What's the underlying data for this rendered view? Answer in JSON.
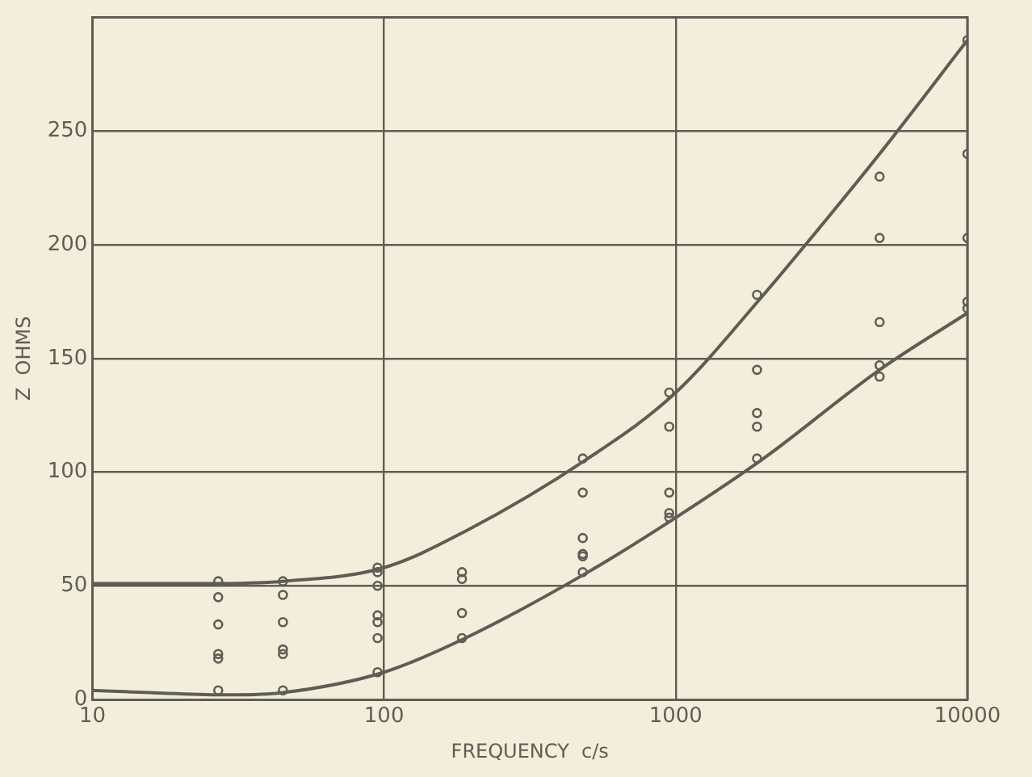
{
  "chart_data": {
    "type": "line",
    "xlabel": "FREQUENCY  c/s",
    "ylabel": "Z  OHMS",
    "log": "x",
    "grid": true,
    "legend": false,
    "xlim": [
      10,
      10000
    ],
    "ylim": [
      0,
      300
    ],
    "xticks": [
      10,
      100,
      1000,
      10000
    ],
    "yticks": [
      0,
      50,
      100,
      150,
      200,
      250,
      {
        "value": 300,
        "label": null
      }
    ],
    "series": [
      {
        "type": "line",
        "color": "#5e5d55",
        "marker": "none",
        "x": [
          10,
          25,
          45,
          100,
          190,
          500,
          1000,
          2000,
          3000,
          5000,
          10000
        ],
        "values": [
          51,
          51,
          52,
          58,
          74,
          106,
          135,
          178,
          205,
          240,
          290
        ]
      },
      {
        "type": "line",
        "color": "#5e5d55",
        "marker": "none",
        "x": [
          10,
          30,
          45,
          100,
          190,
          500,
          1000,
          2000,
          5000,
          10000
        ],
        "values": [
          4,
          2,
          3,
          12,
          27,
          56,
          80,
          106,
          145,
          170
        ]
      },
      {
        "type": "scatter",
        "color": "#5e5d55",
        "marker": "circle",
        "x": [
          27,
          27,
          27,
          27,
          27,
          27,
          45,
          45,
          45,
          45,
          45,
          45,
          95,
          95,
          95,
          95,
          95,
          95,
          95,
          185,
          185,
          185,
          185,
          480,
          480,
          480,
          480,
          480,
          480,
          950,
          950,
          950,
          950,
          950,
          1900,
          1900,
          1900,
          1900,
          1900,
          5000,
          5000,
          5000,
          5000,
          5000,
          10000,
          10000,
          10000,
          10000,
          10000
        ],
        "values": [
          52,
          45,
          33,
          20,
          18,
          4,
          52,
          46,
          34,
          22,
          20,
          4,
          58,
          56,
          50,
          37,
          34,
          27,
          12,
          56,
          53,
          38,
          27,
          106,
          91,
          71,
          64,
          63,
          56,
          135,
          120,
          91,
          82,
          80,
          178,
          145,
          126,
          120,
          106,
          230,
          203,
          166,
          147,
          142,
          290,
          240,
          203,
          175,
          172
        ]
      }
    ]
  }
}
